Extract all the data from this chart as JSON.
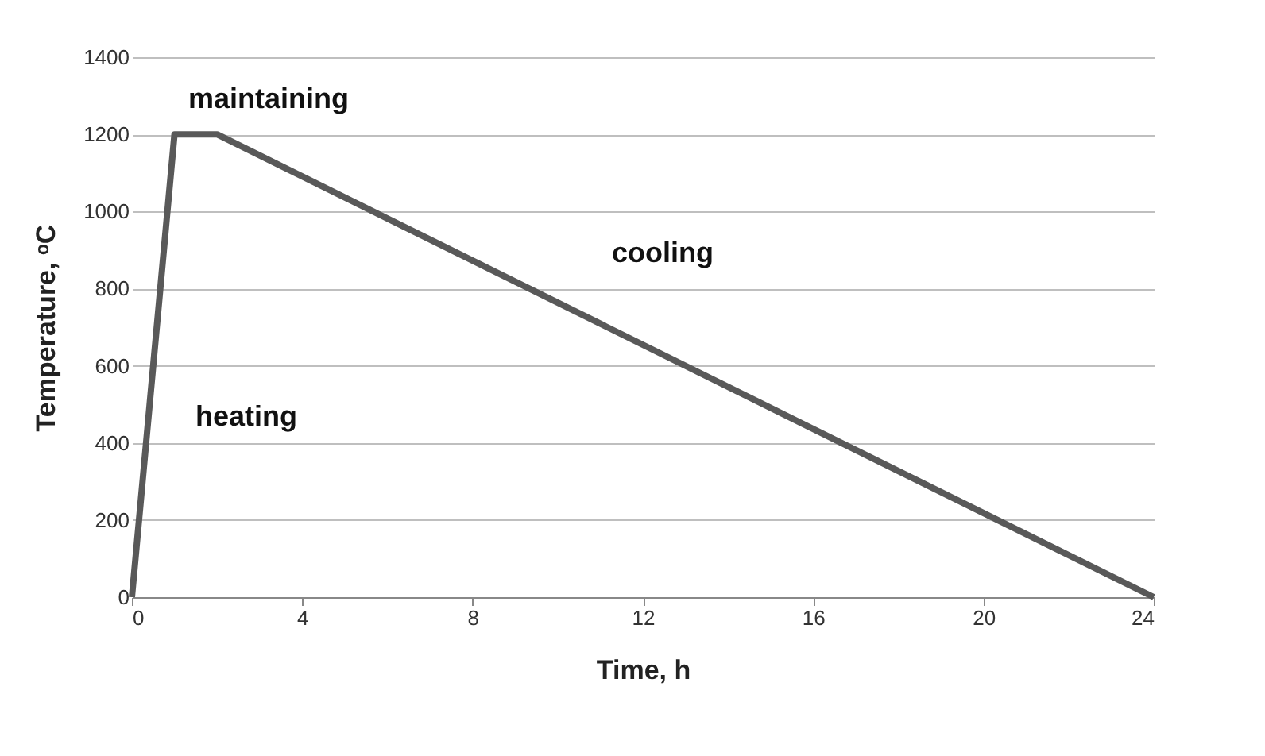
{
  "chart_data": {
    "type": "line",
    "xlabel": "Time, h",
    "ylabel": "Temperature, ᵒC",
    "x": [
      0,
      1,
      2,
      24
    ],
    "series": [
      {
        "color": "#595959",
        "values": [
          0,
          1200,
          1200,
          0
        ]
      }
    ],
    "xlim": [
      0,
      24
    ],
    "xticks": [
      0,
      4,
      8,
      12,
      16,
      20,
      24
    ],
    "ylim": [
      0,
      1400
    ],
    "yticks": [
      0,
      200,
      400,
      600,
      800,
      1000,
      1200,
      1400
    ],
    "grid": "y",
    "marker": "none",
    "line_style": "solid",
    "annotations": [
      "maintaining",
      "heating",
      "cooling"
    ]
  }
}
